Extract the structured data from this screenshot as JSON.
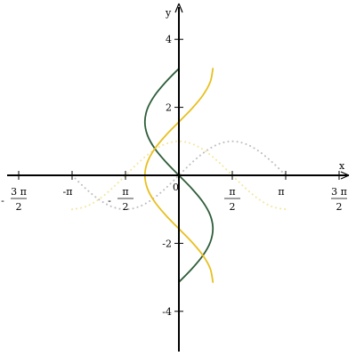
{
  "chart_data": {
    "type": "line",
    "title": "",
    "xlabel": "x",
    "ylabel": "y",
    "xlim": [
      -5.0,
      5.0
    ],
    "ylim": [
      -5.0,
      5.0
    ],
    "grid": false,
    "x_ticks": [
      {
        "value": -4.712,
        "num": "3 π",
        "den": "2",
        "sign": "-"
      },
      {
        "value": -3.1416,
        "text": "-π"
      },
      {
        "value": -1.5708,
        "num": "π",
        "den": "2",
        "sign": "-"
      },
      {
        "value": 1.5708,
        "num": "π",
        "den": "2",
        "sign": ""
      },
      {
        "value": 3.1416,
        "text": "π"
      },
      {
        "value": 4.712,
        "num": "3 π",
        "den": "2",
        "sign": ""
      }
    ],
    "y_ticks": [
      {
        "value": 4,
        "text": "4"
      },
      {
        "value": 2,
        "text": "2"
      },
      {
        "value": -2,
        "text": "-2"
      },
      {
        "value": -4,
        "text": "-4"
      }
    ],
    "origin_label": "0",
    "series": [
      {
        "color": "#bfbfbf",
        "style": "dotted",
        "points": [
          [
            -3.1416,
            0.0
          ],
          [
            -2.7489,
            -0.3827
          ],
          [
            -2.3562,
            -0.7071
          ],
          [
            -1.9635,
            -0.9239
          ],
          [
            -1.5708,
            -1.0
          ],
          [
            -1.1781,
            -0.9239
          ],
          [
            -0.7854,
            -0.7071
          ],
          [
            -0.3927,
            -0.3827
          ],
          [
            0.0,
            0.0
          ],
          [
            0.3927,
            0.3827
          ],
          [
            0.7854,
            0.7071
          ],
          [
            1.1781,
            0.9239
          ],
          [
            1.5708,
            1.0
          ],
          [
            1.9635,
            0.9239
          ],
          [
            2.3562,
            0.7071
          ],
          [
            2.7489,
            0.3827
          ],
          [
            3.1416,
            0.0
          ]
        ]
      },
      {
        "color": "#f5e6a0",
        "style": "dotted",
        "points": [
          [
            -3.1416,
            -1.0
          ],
          [
            -2.7489,
            -0.9239
          ],
          [
            -2.3562,
            -0.7071
          ],
          [
            -1.9635,
            -0.3827
          ],
          [
            -1.5708,
            0.0
          ],
          [
            -1.1781,
            0.3827
          ],
          [
            -0.7854,
            0.7071
          ],
          [
            -0.3927,
            0.9239
          ],
          [
            0.0,
            1.0
          ],
          [
            0.3927,
            0.9239
          ],
          [
            0.7854,
            0.7071
          ],
          [
            1.1781,
            0.3827
          ],
          [
            1.5708,
            0.0
          ],
          [
            1.9635,
            -0.3827
          ],
          [
            2.3562,
            -0.7071
          ],
          [
            2.7489,
            -0.9239
          ],
          [
            3.1416,
            -1.0
          ]
        ]
      },
      {
        "color": "#2e5e3a",
        "style": "solid",
        "points": [
          [
            0.0,
            -3.1416
          ],
          [
            0.3827,
            -2.7489
          ],
          [
            0.7071,
            -2.3562
          ],
          [
            0.9239,
            -1.9635
          ],
          [
            1.0,
            -1.5708
          ],
          [
            0.9239,
            -1.1781
          ],
          [
            0.7071,
            -0.7854
          ],
          [
            0.3827,
            -0.3927
          ],
          [
            0.0,
            0.0
          ],
          [
            -0.3827,
            0.3927
          ],
          [
            -0.7071,
            0.7854
          ],
          [
            -0.9239,
            1.1781
          ],
          [
            -1.0,
            1.5708
          ],
          [
            -0.9239,
            1.9635
          ],
          [
            -0.7071,
            2.3562
          ],
          [
            -0.3827,
            2.7489
          ],
          [
            0.0,
            3.1416
          ]
        ]
      },
      {
        "color": "#e8c020",
        "style": "solid",
        "points": [
          [
            1.0,
            -3.1416
          ],
          [
            0.9239,
            -2.7489
          ],
          [
            0.7071,
            -2.3562
          ],
          [
            0.3827,
            -1.9635
          ],
          [
            0.0,
            -1.5708
          ],
          [
            -0.3827,
            -1.1781
          ],
          [
            -0.7071,
            -0.7854
          ],
          [
            -0.9239,
            -0.3927
          ],
          [
            -1.0,
            0.0
          ],
          [
            -0.9239,
            0.3927
          ],
          [
            -0.7071,
            0.7854
          ],
          [
            -0.3827,
            1.1781
          ],
          [
            0.0,
            1.5708
          ],
          [
            0.3827,
            1.9635
          ],
          [
            0.7071,
            2.3562
          ],
          [
            0.9239,
            2.7489
          ],
          [
            1.0,
            3.1416
          ]
        ]
      }
    ]
  }
}
